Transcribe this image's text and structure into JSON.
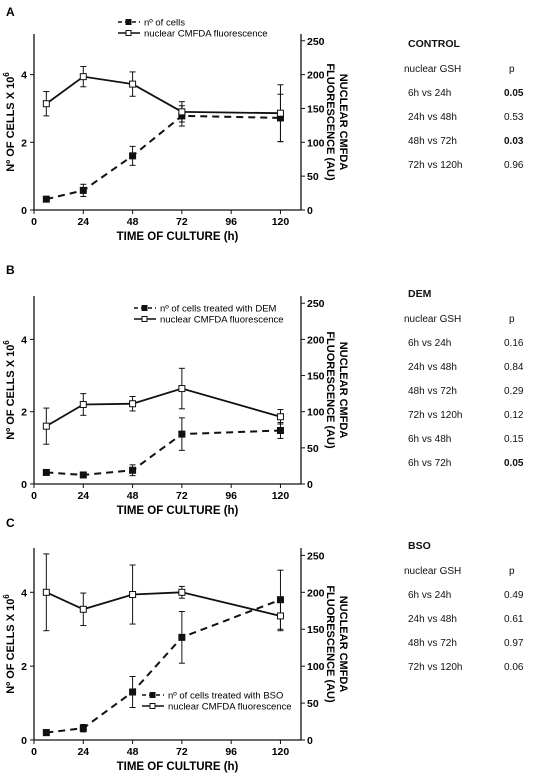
{
  "chart_data": [
    {
      "type": "line",
      "panel": "A",
      "xlabel": "TIME OF CULTURE (h)",
      "ylabel_left": "Nº OF CELLS X 10",
      "ylabel_left_sup": "6",
      "ylabel_right_line1": "NUCLEAR CMFDA",
      "ylabel_right_line2": "FLUORESCENCE (AU)",
      "xticks": [
        "0",
        "24",
        "48",
        "72",
        "96",
        "120"
      ],
      "yticks_left": [
        "0",
        "2",
        "4"
      ],
      "yticks_right": [
        "0",
        "50",
        "100",
        "150",
        "200",
        "250"
      ],
      "xlim": [
        0,
        130
      ],
      "ylim_left": [
        0,
        5.2
      ],
      "ylim_right": [
        0,
        260
      ],
      "legend_position": "top-center",
      "series": [
        {
          "name": "nº of cells",
          "axis": "left",
          "style": "dashed",
          "marker": "filled-square",
          "x": [
            6,
            24,
            48,
            72,
            120
          ],
          "y": [
            0.32,
            0.58,
            1.6,
            2.78,
            2.72
          ],
          "err": [
            0.08,
            0.18,
            0.28,
            0.3,
            0.7
          ]
        },
        {
          "name": "nuclear CMFDA fluorescence",
          "axis": "right",
          "style": "solid",
          "marker": "open-square",
          "x": [
            6,
            24,
            48,
            72,
            120
          ],
          "y": [
            157,
            197,
            186,
            145,
            143
          ],
          "err": [
            18,
            15,
            18,
            15,
            42
          ]
        }
      ],
      "stats": {
        "title": "CONTROL",
        "header": [
          "nuclear GSH",
          "p"
        ],
        "rows": [
          {
            "comparison": "6h vs 24h",
            "p": "0.05",
            "bold": true
          },
          {
            "comparison": "24h vs 48h",
            "p": "0.53",
            "bold": false
          },
          {
            "comparison": "48h vs 72h",
            "p": "0.03",
            "bold": true
          },
          {
            "comparison": "72h vs 120h",
            "p": "0.96",
            "bold": false
          }
        ]
      }
    },
    {
      "type": "line",
      "panel": "B",
      "xlabel": "TIME OF CULTURE (h)",
      "ylabel_left": "Nº OF CELLS X 10",
      "ylabel_left_sup": "6",
      "ylabel_right_line1": "NUCLEAR CMFDA",
      "ylabel_right_line2": "FLUORESCENCE (AU)",
      "xticks": [
        "0",
        "24",
        "48",
        "72",
        "96",
        "120"
      ],
      "yticks_left": [
        "0",
        "2",
        "4"
      ],
      "yticks_right": [
        "0",
        "50",
        "100",
        "150",
        "200",
        "250"
      ],
      "xlim": [
        0,
        130
      ],
      "ylim_left": [
        0,
        5.2
      ],
      "ylim_right": [
        0,
        260
      ],
      "legend_position": "top-right",
      "series": [
        {
          "name": "nº of cells treated with DEM",
          "axis": "left",
          "style": "dashed",
          "marker": "filled-square",
          "x": [
            6,
            24,
            48,
            72,
            120
          ],
          "y": [
            0.32,
            0.25,
            0.38,
            1.38,
            1.48
          ],
          "err": [
            0.06,
            0.06,
            0.15,
            0.45,
            0.22
          ]
        },
        {
          "name": "nuclear CMFDA fluorescence",
          "axis": "right",
          "style": "solid",
          "marker": "open-square",
          "x": [
            6,
            24,
            48,
            72,
            120
          ],
          "y": [
            80,
            110,
            111,
            132,
            93
          ],
          "err": [
            25,
            15,
            10,
            28,
            10
          ]
        }
      ],
      "stats": {
        "title": "DEM",
        "header": [
          "nuclear GSH",
          "p"
        ],
        "rows": [
          {
            "comparison": "6h vs 24h",
            "p": "0.16",
            "bold": false
          },
          {
            "comparison": "24h vs 48h",
            "p": "0.84",
            "bold": false
          },
          {
            "comparison": "48h vs 72h",
            "p": "0.29",
            "bold": false
          },
          {
            "comparison": "72h vs 120h",
            "p": "0.12",
            "bold": false
          },
          {
            "comparison": "6h vs 48h",
            "p": "0.15",
            "bold": false
          },
          {
            "comparison": "6h vs 72h",
            "p": "0.05",
            "bold": true
          }
        ]
      }
    },
    {
      "type": "line",
      "panel": "C",
      "xlabel": "TIME OF CULTURE (h)",
      "ylabel_left": "Nº OF CELLS X 10",
      "ylabel_left_sup": "6",
      "ylabel_right_line1": "NUCLEAR CMFDA",
      "ylabel_right_line2": "FLUORESCENCE (AU)",
      "xticks": [
        "0",
        "24",
        "48",
        "72",
        "96",
        "120"
      ],
      "yticks_left": [
        "0",
        "2",
        "4"
      ],
      "yticks_right": [
        "0",
        "50",
        "100",
        "150",
        "200",
        "250"
      ],
      "xlim": [
        0,
        130
      ],
      "ylim_left": [
        0,
        5.2
      ],
      "ylim_right": [
        0,
        260
      ],
      "legend_position": "bottom-right",
      "series": [
        {
          "name": "nº of cells treated with BSO",
          "axis": "left",
          "style": "dashed",
          "marker": "filled-square",
          "x": [
            6,
            24,
            48,
            72,
            120
          ],
          "y": [
            0.2,
            0.32,
            1.3,
            2.78,
            3.8
          ],
          "err": [
            0.08,
            0.1,
            0.42,
            0.7,
            0.8
          ]
        },
        {
          "name": "nuclear CMFDA fluorescence",
          "axis": "right",
          "style": "solid",
          "marker": "open-square",
          "x": [
            6,
            24,
            48,
            72,
            120
          ],
          "y": [
            200,
            177,
            197,
            200,
            168
          ],
          "err": [
            52,
            22,
            40,
            8,
            20
          ]
        }
      ],
      "stats": {
        "title": "BSO",
        "header": [
          "nuclear GSH",
          "p"
        ],
        "rows": [
          {
            "comparison": "6h vs 24h",
            "p": "0.49",
            "bold": false
          },
          {
            "comparison": "24h vs 48h",
            "p": "0.61",
            "bold": false
          },
          {
            "comparison": "48h vs 72h",
            "p": "0.97",
            "bold": false
          },
          {
            "comparison": "72h vs 120h",
            "p": "0.06",
            "bold": false
          }
        ]
      }
    }
  ]
}
